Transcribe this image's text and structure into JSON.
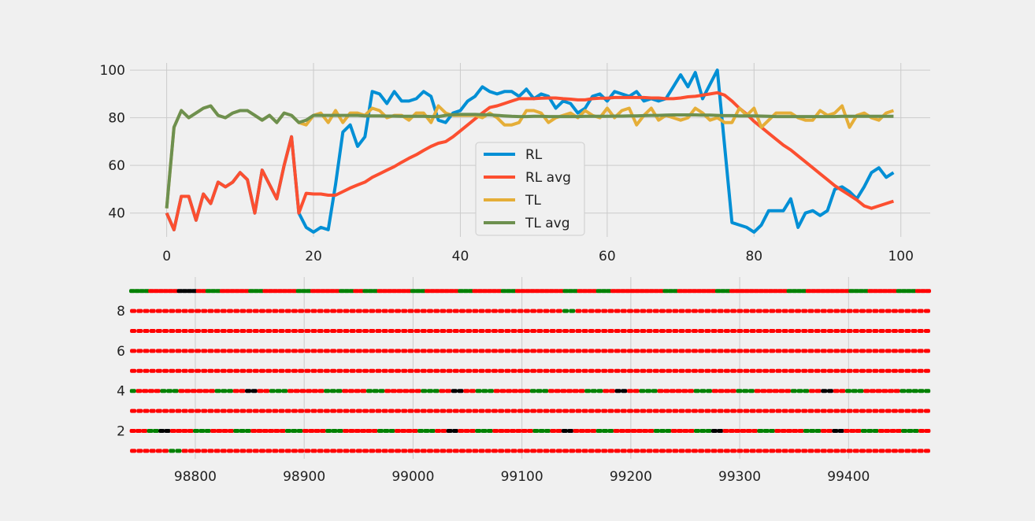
{
  "chart_data": [
    {
      "type": "line",
      "title": "",
      "xlabel": "",
      "ylabel": "",
      "xlim": [
        -5,
        104
      ],
      "ylim": [
        30,
        103
      ],
      "xticks": [
        0,
        20,
        40,
        60,
        80,
        100
      ],
      "yticks": [
        40,
        60,
        80,
        100
      ],
      "grid": true,
      "legend": "center",
      "x": [
        0,
        1,
        2,
        3,
        4,
        5,
        6,
        7,
        8,
        9,
        10,
        11,
        12,
        13,
        14,
        15,
        16,
        17,
        18,
        19,
        20,
        21,
        22,
        23,
        24,
        25,
        26,
        27,
        28,
        29,
        30,
        31,
        32,
        33,
        34,
        35,
        36,
        37,
        38,
        39,
        40,
        41,
        42,
        43,
        44,
        45,
        46,
        47,
        48,
        49,
        50,
        51,
        52,
        53,
        54,
        55,
        56,
        57,
        58,
        59,
        60,
        61,
        62,
        63,
        64,
        65,
        66,
        67,
        68,
        69,
        70,
        71,
        72,
        73,
        74,
        75,
        76,
        77,
        78,
        79,
        80,
        81,
        82,
        83,
        84,
        85,
        86,
        87,
        88,
        89,
        90,
        91,
        92,
        93,
        94,
        95,
        96,
        97,
        98,
        99
      ],
      "series": [
        {
          "name": "RL",
          "color": "#008fd5",
          "values": [
            40,
            33,
            47,
            47,
            37,
            48,
            44,
            53,
            51,
            53,
            57,
            54,
            40,
            58,
            52,
            46,
            60,
            72,
            40,
            34,
            32,
            34,
            33,
            52,
            74,
            77,
            68,
            72,
            91,
            90,
            86,
            91,
            87,
            87,
            88,
            91,
            89,
            79,
            78,
            82,
            83,
            87,
            89,
            93,
            91,
            90,
            91,
            91,
            89,
            92,
            88,
            90,
            89,
            84,
            87,
            86,
            82,
            84,
            89,
            90,
            87,
            91,
            90,
            89,
            91,
            87,
            88,
            87,
            88,
            93,
            98,
            93,
            99,
            88,
            94,
            100,
            68,
            36,
            35,
            34,
            32,
            35,
            41,
            41,
            41,
            46,
            34,
            40,
            41,
            39,
            41,
            50,
            51,
            49,
            46,
            51,
            57,
            59,
            55,
            57
          ]
        },
        {
          "name": "RL avg",
          "color": "#fc4f30",
          "values": [
            40,
            33,
            47,
            47,
            37,
            48,
            44,
            53,
            51,
            53,
            57,
            54,
            40,
            58,
            52,
            46,
            60,
            72,
            40,
            48.3,
            48,
            48,
            47.5,
            47.5,
            49,
            50.5,
            51.8,
            53,
            55,
            56.5,
            58,
            59.5,
            61.3,
            63,
            64.5,
            66.3,
            68,
            69.3,
            70,
            72,
            74.5,
            77,
            79.5,
            82,
            84.3,
            85,
            86,
            87,
            88,
            88,
            88,
            88.2,
            88.3,
            88.3,
            88,
            87.8,
            87.5,
            87.5,
            88,
            88.2,
            88.2,
            88.5,
            88.5,
            88.5,
            88.5,
            88.5,
            88.3,
            88.3,
            88,
            88,
            88.3,
            88.8,
            89,
            89.5,
            90,
            90.5,
            89.5,
            87,
            84,
            81.5,
            78.5,
            76,
            73.5,
            71,
            68.5,
            66.5,
            64,
            61.5,
            59,
            56.5,
            54,
            51.5,
            49.5,
            47.5,
            45.5,
            43,
            42,
            43,
            44,
            45
          ]
        },
        {
          "name": "TL",
          "color": "#e5ae38",
          "values": [
            42,
            76,
            83,
            80,
            82,
            84,
            85,
            81,
            80,
            82,
            83,
            83,
            81,
            79,
            81,
            78,
            82,
            81,
            78,
            77,
            81,
            82,
            78,
            83,
            78,
            82,
            82,
            81,
            84,
            83,
            80,
            81,
            81,
            79,
            82,
            82,
            78,
            85,
            82,
            81,
            81,
            81,
            81,
            80,
            82,
            80,
            77,
            77,
            78,
            83,
            83,
            82,
            78,
            80,
            81,
            82,
            80,
            83,
            81,
            80,
            84,
            80,
            83,
            84,
            77,
            81,
            84,
            79,
            81,
            80,
            79,
            80,
            84,
            82,
            79,
            80,
            78,
            78,
            84,
            81,
            84,
            76,
            79,
            82,
            82,
            82,
            80,
            79,
            79,
            83,
            81,
            82,
            85,
            76,
            81,
            82,
            80,
            79,
            82,
            83
          ]
        },
        {
          "name": "TL avg",
          "color": "#6d904f",
          "values": [
            42,
            76,
            83,
            80,
            82,
            84,
            85,
            81,
            80,
            82,
            83,
            83,
            81,
            79,
            81,
            78,
            82,
            81,
            78,
            79,
            81,
            81,
            81,
            81,
            81,
            81,
            81,
            80.8,
            80.8,
            80.8,
            80.7,
            80.7,
            80.6,
            80.6,
            80.6,
            80.6,
            80.5,
            80.5,
            81,
            81.3,
            81.4,
            81.4,
            81.4,
            81.3,
            81.2,
            81,
            80.8,
            80.6,
            80.5,
            80.5,
            80.6,
            80.6,
            80.5,
            80.5,
            80.5,
            80.5,
            80.5,
            80.6,
            80.6,
            80.6,
            80.6,
            80.7,
            80.7,
            80.8,
            80.8,
            80.9,
            81,
            81,
            81.1,
            81.2,
            81.2,
            81.2,
            81.2,
            81.1,
            81.1,
            81,
            80.9,
            80.9,
            80.8,
            80.8,
            80.8,
            80.7,
            80.6,
            80.5,
            80.5,
            80.5,
            80.5,
            80.5,
            80.5,
            80.5,
            80.5,
            80.5,
            80.6,
            80.6,
            80.6,
            80.6,
            80.6,
            80.6,
            80.6,
            80.6
          ]
        }
      ]
    },
    {
      "type": "scatter",
      "title": "",
      "xlabel": "",
      "ylabel": "",
      "xlim": [
        98740,
        99475
      ],
      "ylim": [
        0.6,
        9.7
      ],
      "xticks": [
        98800,
        98900,
        99000,
        99100,
        99200,
        99300,
        99400
      ],
      "yticks": [
        2,
        4,
        6,
        8
      ],
      "grid": true,
      "status_colors": {
        "r": "#ff0000",
        "g": "#008000",
        "b": "#000000"
      },
      "rows": [
        {
          "y": 9,
          "pattern": "ggggrrrrrrbbbbrrgggrrrrrrgggrrrrrrrgggrrrrrrgggrrgggrrrrrrrgggrrrrrrrgggrrrrrrgggrrrrrrrrrrgggrrrrgggrrrrrrrrrrrgggrrrrrrrrgggrrrrrrrrrrrrggggrrrrrrrrrggggrrrrrrggggrrr"
        },
        {
          "y": 8,
          "pattern": "rrrrrrrrrrrrrrrrrrrrrrrrrrrrrrrrrrrrrrrrrrrrrrrrrrrrrrrrrrrrrrrrrrrggrrrrrrrrrrrrrrrrrrrrrrrrrrrrrrrrrrrrrrrrrrrrrrrrrrrrrrr"
        },
        {
          "y": 7,
          "pattern": "rrrrrrrrrrrrrrrrrrrrrrrrrrrrrrrrrrrrrrrrrrrrrrrrrrrrrrrrrrrrrrrrrrrrrrrrrrrrrrrrrrrrrrrrrrrrrrrrrrrrrrrrrrrrrrrrrrrrrrrrrrrr"
        },
        {
          "y": 6,
          "pattern": "rrrrrrrrrrrrrrrrrrrrrrrrrrrrrrrrrrrrrrrrrrrrrrrrrrrrrrrrrrrrrrrrrrrrrrrrrrrrrrrrrrrrrrrrrrrrrrrrrrrrrrrrrrrrrrrrrrrrrrrrrrrr"
        },
        {
          "y": 5,
          "pattern": "rrrrrrrrrrrrrrrrrrrrrrrrrrrrrrrrrrrrrrrrrrrrrrrrrrrrrrrrrrrrrrrrrrrrrrrrrrrrrrrrrrrrrrrrrrrrrrrrrrrrrrrrrrrrrrrrrrrrrrrrrrrr"
        },
        {
          "y": 4,
          "pattern": "grrrrgggrrrrrrgggrrbbrrgggrrrrrrgggrrrrgggrrrrrrgggrrbbrrgggrrrrrrgggrrrrrrgggrrbbrrgggrrrrrrgggrrrrgggrrrrrrgggrrbbrrgggrrrrrrggggg"
        },
        {
          "y": 3,
          "pattern": "rrrrrrrrrrrrrrrrrrrrrrrrrrrrrrrrrrrrrrrrrrrrrrrrrrrrrrrrrrrrrrrrrrrrrrrrrrrrrrrrrrrrrrrrrrrrrrrrrrrrrrrrrrrrrrrrrrrrrrrrrrrr"
        },
        {
          "y": 2,
          "pattern": "rrrggbbrrrrgggrrrrgggrrrrrrgggrrrrgggrrrrrrgggrrrrgggrrbbrrrgggrrrrrrrgggrrbbrrrrgggrrrrrrrgggrrrrgggbbrrrrrrgggrrrrrgggrrbbrrrgggrrrrgggrr"
        },
        {
          "y": 1,
          "pattern": "rrrrrrggrrrrrrrrrrrrrrrrrrrrrrrrrrrrrrrrrrrrrrrrrrrrrrrrrrrrrrrrrrrrrrrrrrrrrrrrrrrrrrrrrrrrrrrrrrrrrrrrrrrrrrrrrrrrrrrrrrrr"
        }
      ]
    }
  ]
}
